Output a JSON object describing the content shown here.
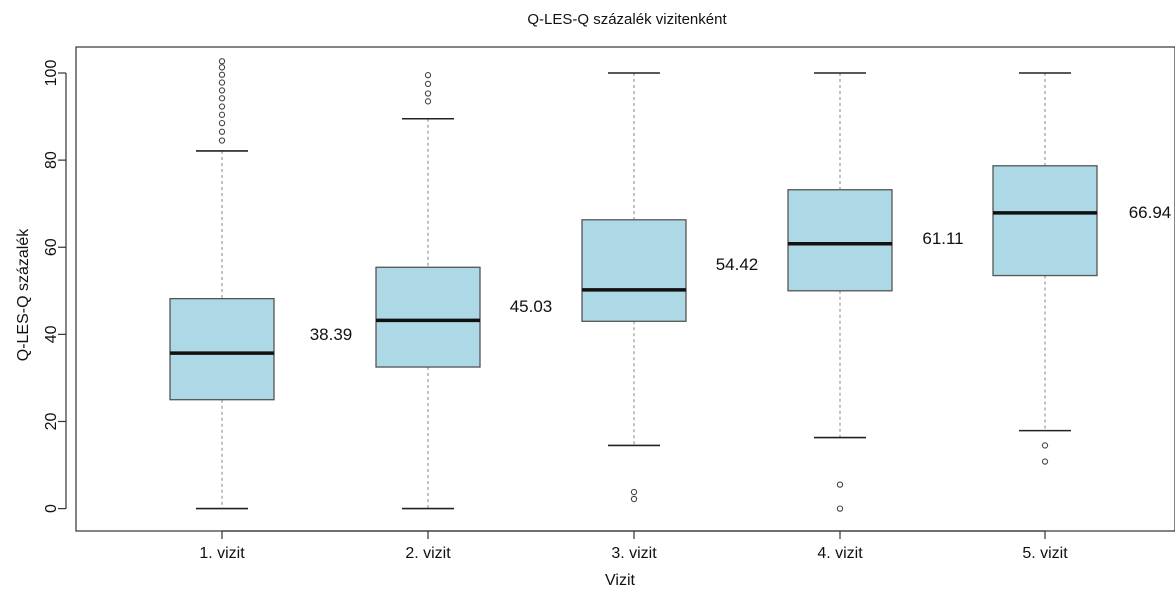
{
  "chart_data": {
    "type": "boxplot",
    "title": "Q-LES-Q százalék vizitenként",
    "xlabel": "Vizit",
    "ylabel": "Q-LES-Q százalék",
    "ylim": [
      -2,
      104
    ],
    "y_ticks": [
      "0",
      "20",
      "40",
      "60",
      "80",
      "100"
    ],
    "y_tick_values": [
      0,
      20,
      40,
      60,
      80,
      100
    ],
    "grid": false,
    "box_color": "#add8e6",
    "categories": [
      "1. vizit",
      "2. vizit",
      "3. vizit",
      "4. vizit",
      "5. vizit"
    ],
    "boxes": [
      {
        "category": "1. vizit",
        "whisker_low": 0,
        "q1": 25.0,
        "median": 35.7,
        "q3": 48.2,
        "whisker_high": 82.1,
        "outliers": [
          84.5,
          86.5,
          88.5,
          90.4,
          92.3,
          94.2,
          96.0,
          97.8,
          99.6,
          101.3,
          102.7
        ],
        "mean": "38.39"
      },
      {
        "category": "2. vizit",
        "whisker_low": 0,
        "q1": 32.5,
        "median": 43.2,
        "q3": 55.4,
        "whisker_high": 89.5,
        "outliers": [
          93.5,
          95.3,
          97.5,
          99.5
        ],
        "mean": "45.03"
      },
      {
        "category": "3. vizit",
        "whisker_low": 14.5,
        "q1": 43.0,
        "median": 50.2,
        "q3": 66.3,
        "whisker_high": 100,
        "outliers": [
          2.2,
          3.8
        ],
        "mean": "54.42"
      },
      {
        "category": "4. vizit",
        "whisker_low": 16.3,
        "q1": 50.0,
        "median": 60.8,
        "q3": 73.2,
        "whisker_high": 100,
        "outliers": [
          0,
          5.5
        ],
        "mean": "61.11"
      },
      {
        "category": "5. vizit",
        "whisker_low": 17.9,
        "q1": 53.5,
        "median": 67.9,
        "q3": 78.7,
        "whisker_high": 100,
        "outliers": [
          10.8,
          14.5
        ],
        "mean": "66.94"
      }
    ]
  }
}
